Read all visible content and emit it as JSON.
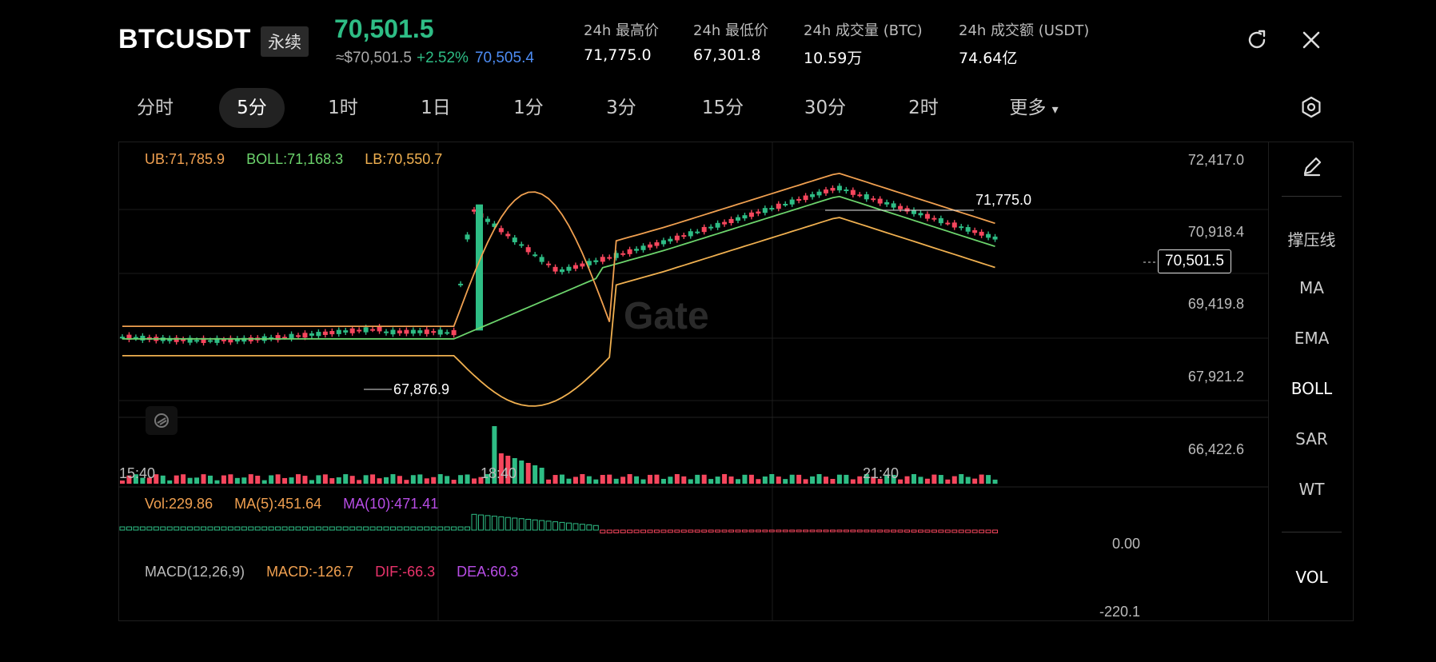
{
  "header": {
    "symbol": "BTCUSDT",
    "contract_type": "永续",
    "last_price": "70,501.5",
    "usd_equiv": "≈$70,501.5",
    "change_pct": "+2.52%",
    "mark_price": "70,505.4",
    "stats": [
      {
        "label": "24h 最高价",
        "value": "71,775.0"
      },
      {
        "label": "24h 最低价",
        "value": "67,301.8"
      },
      {
        "label": "24h 成交量 (BTC)",
        "value": "10.59万"
      },
      {
        "label": "24h 成交额 (USDT)",
        "value": "74.64亿"
      }
    ],
    "icons": {
      "refresh": "refresh-icon",
      "close": "close-icon"
    }
  },
  "tabs": [
    {
      "label": "分时"
    },
    {
      "label": "5分",
      "active": true
    },
    {
      "label": "1时"
    },
    {
      "label": "1日"
    },
    {
      "label": "1分"
    },
    {
      "label": "3分"
    },
    {
      "label": "15分"
    },
    {
      "label": "30分"
    },
    {
      "label": "2时"
    },
    {
      "label": "更多"
    }
  ],
  "more_arrow": "▾",
  "main_chart": {
    "legend": {
      "ub": "UB:71,785.9",
      "boll": "BOLL:71,168.3",
      "lb": "LB:70,550.7"
    },
    "y_ticks": [
      "72,417.0",
      "70,918.4",
      "69,419.8",
      "67,921.2",
      "66,422.6"
    ],
    "x_ticks": [
      "15:40",
      "18:40",
      "21:40"
    ],
    "high_label": "71,775.0",
    "low_label": "67,876.9",
    "current_price_tag": "70,501.5",
    "watermark": "Gate"
  },
  "vol_panel": {
    "legend": {
      "vol": "Vol:229.86",
      "ma5": "MA(5):451.64",
      "ma10": "MA(10):471.41"
    },
    "y_tick": "0.00"
  },
  "macd_panel": {
    "legend": {
      "name": "MACD(12,26,9)",
      "macd": "MACD:-126.7",
      "dif": "DIF:-66.3",
      "dea": "DEA:60.3"
    },
    "y_tick": "-220.1"
  },
  "side_menu": {
    "draw_icon": "pencil-icon",
    "items": [
      {
        "label": "撑压线"
      },
      {
        "label": "MA"
      },
      {
        "label": "EMA"
      },
      {
        "label": "BOLL",
        "active": true
      },
      {
        "label": "SAR"
      },
      {
        "label": "WT"
      }
    ],
    "vol_label": "VOL"
  },
  "colors": {
    "up": "#2ebd85",
    "down": "#f6465d",
    "ub": "#f0a050",
    "boll": "#6cd46c",
    "lb": "#f0b050",
    "ma10": "#b84de6",
    "dif": "#e8336b",
    "dea": "#b84de6"
  }
}
